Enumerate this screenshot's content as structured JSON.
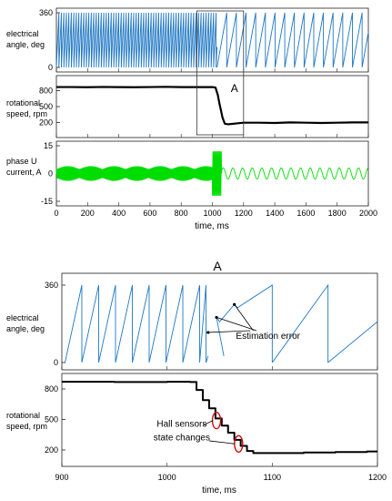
{
  "chart_data": [
    {
      "type": "line",
      "xlabel": "time, ms",
      "xlim": [
        0,
        2000
      ],
      "xticks": [
        0,
        200,
        400,
        600,
        800,
        1000,
        1200,
        1400,
        1600,
        1800,
        2000
      ],
      "zoom_box": {
        "label": "A",
        "x_range": [
          900,
          1200
        ]
      },
      "panels": [
        {
          "ylabel": "electrical angle, deg",
          "ylim": [
            0,
            360
          ],
          "yticks": [
            0,
            360
          ],
          "series": [
            {
              "color": "#1f77c4",
              "pattern": "sawtooth 0-360",
              "period_ms": [
                [
                  0,
                  1030,
                  16
                ],
                [
                  1030,
                  2000,
                  62
                ]
              ]
            }
          ]
        },
        {
          "ylabel": "rotational speed, rpm",
          "ylim": [
            0,
            1000
          ],
          "yticks": [
            200,
            500,
            800
          ],
          "series": [
            {
              "color": "#000000",
              "x": [
                0,
                100,
                200,
                300,
                400,
                500,
                600,
                700,
                800,
                900,
                1000,
                1020,
                1035,
                1045,
                1055,
                1065,
                1080,
                1100,
                1150,
                1200,
                1300,
                1400,
                1500,
                1600,
                1700,
                1800,
                1900,
                2000
              ],
              "y": [
                870,
                870,
                866,
                872,
                868,
                866,
                870,
                874,
                868,
                868,
                870,
                860,
                720,
                560,
                430,
                290,
                175,
                165,
                180,
                195,
                195,
                190,
                200,
                195,
                190,
                195,
                200,
                200
              ]
            }
          ]
        },
        {
          "ylabel": "phase U current, A",
          "ylim": [
            -15,
            15
          ],
          "yticks": [
            -15,
            0,
            15
          ],
          "series": [
            {
              "color": "#00dd00",
              "pattern": "oscillation around 0",
              "amplitude_A": [
                [
                  0,
                  1000,
                  4
                ],
                [
                  1000,
                  1060,
                  12
                ],
                [
                  1060,
                  2000,
                  3
                ]
              ]
            }
          ]
        }
      ]
    },
    {
      "type": "line",
      "title": "A",
      "xlabel": "time, ms",
      "xlim": [
        900,
        1200
      ],
      "xticks": [
        900,
        1000,
        1100,
        1200
      ],
      "panels": [
        {
          "ylabel": "electrical angle, deg",
          "ylim": [
            0,
            360
          ],
          "yticks": [
            0,
            360
          ],
          "series": [
            {
              "color": "#1f77c4",
              "pattern": "sawtooth 0-360",
              "ramp_starts_ms": [
                903,
                919,
                935,
                951,
                967,
                983,
                999,
                1015,
                1031,
                1054,
                1100,
                1153,
                1200
              ]
            }
          ],
          "annotation": {
            "text": "Estimation error",
            "points": [
              [
                1047,
                210
              ],
              [
                1064,
                270
              ],
              [
                1039,
                140
              ]
            ]
          }
        },
        {
          "ylabel": "rotational speed, rpm",
          "ylim": [
            100,
            900
          ],
          "yticks": [
            200,
            500,
            800
          ],
          "series": [
            {
              "color": "#000000",
              "x": [
                900,
                950,
                1000,
                1022,
                1028,
                1034,
                1040,
                1046,
                1052,
                1058,
                1064,
                1070,
                1076,
                1082,
                1100,
                1130,
                1160,
                1190,
                1200
              ],
              "y": [
                870,
                868,
                870,
                868,
                790,
                690,
                610,
                510,
                440,
                370,
                300,
                240,
                190,
                170,
                170,
                175,
                180,
                185,
                185
              ]
            }
          ],
          "annotation": {
            "text": "Hall sensors state changes",
            "lines": [
              "Hall sensors",
              "state changes"
            ],
            "highlights": [
              [
                1047,
                490
              ],
              [
                1068,
                260
              ]
            ]
          }
        }
      ]
    }
  ]
}
